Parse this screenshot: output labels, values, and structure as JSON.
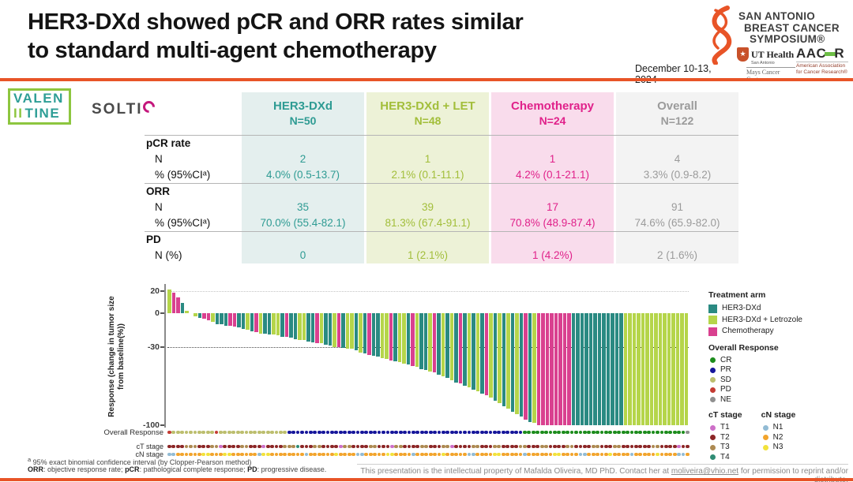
{
  "header": {
    "title_line1": "HER3-DXd showed pCR and ORR rates similar",
    "title_line2": "to standard multi-agent chemotherapy",
    "sabcs_line1": "SAN ANTONIO",
    "sabcs_line2": "BREAST CANCER",
    "sabcs_line3": "SYMPOSIUM®",
    "date": "December 10-13, 2024",
    "ut_health_name": "UT Health",
    "ut_health_city": "San Antonio",
    "ut_health_center": "Mays Cancer Center",
    "aacr_a": "AAC",
    "aacr_r": "R",
    "aacr_sub1": "American Association",
    "aacr_sub2": "for Cancer Research®"
  },
  "logos": {
    "valentine_line1": "VALEN",
    "valentine_bars": "II",
    "valentine_line2": "TINE",
    "solti": "SOLTI"
  },
  "colors": {
    "accent_orange": "#E85427",
    "valentine_teal": "#2E9E96",
    "valentine_green": "#8DC63F",
    "solti_magenta": "#C4177C"
  },
  "table": {
    "columns": [
      {
        "label": "HER3-DXd",
        "n": "N=50",
        "text": "#2E9B93",
        "bg": "#E4EFEE"
      },
      {
        "label": "HER3-DXd + LET",
        "n": "N=48",
        "text": "#A2BE3A",
        "bg": "#EDF2D7"
      },
      {
        "label": "Chemotherapy",
        "n": "N=24",
        "text": "#E0218A",
        "bg": "#F9DCEC"
      },
      {
        "label": "Overall",
        "n": "N=122",
        "text": "#9B9B9B",
        "bg": "#F3F3F3"
      }
    ],
    "rows": [
      {
        "label": "pCR rate",
        "bold": true,
        "values": [
          "",
          "",
          "",
          ""
        ]
      },
      {
        "label": "N",
        "values": [
          "2",
          "1",
          "1",
          "4"
        ]
      },
      {
        "label": "% (95%CIᵃ)",
        "values": [
          "4.0% (0.5-13.7)",
          "2.1% (0.1-11.1)",
          "4.2% (0.1-21.1)",
          "3.3% (0.9-8.2)"
        ],
        "sep": true
      },
      {
        "label": "ORR",
        "bold": true,
        "values": [
          "",
          "",
          "",
          ""
        ]
      },
      {
        "label": "N",
        "values": [
          "35",
          "39",
          "17",
          "91"
        ]
      },
      {
        "label": "% (95%CIᵃ)",
        "values": [
          "70.0% (55.4-82.1)",
          "81.3% (67.4-91.1)",
          "70.8% (48.9-87.4)",
          "74.6% (65.9-82.0)"
        ],
        "sep": true
      },
      {
        "label": "PD",
        "bold": true,
        "values": [
          "",
          "",
          "",
          ""
        ]
      },
      {
        "label": "N (%)",
        "values": [
          "0",
          "1 (2.1%)",
          "1 (4.2%)",
          "2 (1.6%)"
        ]
      }
    ]
  },
  "chart_data": {
    "type": "bar",
    "subtype": "waterfall",
    "ylabel_line1": "Response (change in tumor size",
    "ylabel_line2": "from baseline(%))",
    "ylim": [
      -105,
      25
    ],
    "yticks": [
      {
        "v": 20,
        "label": "20"
      },
      {
        "v": 0,
        "label": "0"
      },
      {
        "v": -30,
        "label": "-30"
      },
      {
        "v": -100,
        "label": "-100"
      }
    ],
    "dotted_lines": [
      20,
      -30
    ],
    "arm_colors": {
      "D": "#2A8A82",
      "L": "#B5D54A",
      "C": "#D9408F"
    },
    "bars": [
      [
        21,
        "L"
      ],
      [
        18,
        "C"
      ],
      [
        14,
        "C"
      ],
      [
        9,
        "D"
      ],
      [
        2,
        "L"
      ],
      [
        0,
        "D"
      ],
      [
        -3,
        "L"
      ],
      [
        -4,
        "D"
      ],
      [
        -5,
        "C"
      ],
      [
        -6,
        "C"
      ],
      [
        -8,
        "L"
      ],
      [
        -10,
        "D"
      ],
      [
        -10,
        "D"
      ],
      [
        -11,
        "D"
      ],
      [
        -11,
        "C"
      ],
      [
        -12,
        "C"
      ],
      [
        -13,
        "D"
      ],
      [
        -14,
        "D"
      ],
      [
        -15,
        "L"
      ],
      [
        -16,
        "D"
      ],
      [
        -17,
        "C"
      ],
      [
        -18,
        "L"
      ],
      [
        -18,
        "D"
      ],
      [
        -19,
        "D"
      ],
      [
        -19,
        "L"
      ],
      [
        -20,
        "L"
      ],
      [
        -21,
        "D"
      ],
      [
        -21,
        "C"
      ],
      [
        -22,
        "D"
      ],
      [
        -23,
        "D"
      ],
      [
        -24,
        "L"
      ],
      [
        -24,
        "L"
      ],
      [
        -25,
        "D"
      ],
      [
        -26,
        "D"
      ],
      [
        -27,
        "C"
      ],
      [
        -27,
        "L"
      ],
      [
        -28,
        "D"
      ],
      [
        -29,
        "D"
      ],
      [
        -30,
        "L"
      ],
      [
        -30,
        "C"
      ],
      [
        -31,
        "D"
      ],
      [
        -32,
        "L"
      ],
      [
        -32,
        "L"
      ],
      [
        -33,
        "D"
      ],
      [
        -35,
        "L"
      ],
      [
        -36,
        "D"
      ],
      [
        -37,
        "C"
      ],
      [
        -38,
        "D"
      ],
      [
        -39,
        "D"
      ],
      [
        -40,
        "L"
      ],
      [
        -41,
        "L"
      ],
      [
        -42,
        "C"
      ],
      [
        -43,
        "D"
      ],
      [
        -44,
        "L"
      ],
      [
        -45,
        "L"
      ],
      [
        -46,
        "D"
      ],
      [
        -47,
        "C"
      ],
      [
        -48,
        "L"
      ],
      [
        -50,
        "D"
      ],
      [
        -51,
        "D"
      ],
      [
        -52,
        "L"
      ],
      [
        -53,
        "C"
      ],
      [
        -55,
        "D"
      ],
      [
        -56,
        "L"
      ],
      [
        -58,
        "D"
      ],
      [
        -60,
        "L"
      ],
      [
        -62,
        "D"
      ],
      [
        -63,
        "C"
      ],
      [
        -65,
        "D"
      ],
      [
        -66,
        "L"
      ],
      [
        -68,
        "D"
      ],
      [
        -70,
        "L"
      ],
      [
        -72,
        "D"
      ],
      [
        -73,
        "C"
      ],
      [
        -75,
        "L"
      ],
      [
        -78,
        "D"
      ],
      [
        -80,
        "L"
      ],
      [
        -83,
        "D"
      ],
      [
        -85,
        "L"
      ],
      [
        -88,
        "D"
      ],
      [
        -90,
        "L"
      ],
      [
        -92,
        "D"
      ],
      [
        -95,
        "C"
      ],
      [
        -97,
        "D"
      ],
      [
        -98,
        "L"
      ],
      [
        -100,
        "C"
      ],
      [
        -100,
        "C"
      ],
      [
        -100,
        "C"
      ],
      [
        -100,
        "C"
      ],
      [
        -100,
        "C"
      ],
      [
        -100,
        "C"
      ],
      [
        -100,
        "C"
      ],
      [
        -100,
        "C"
      ],
      [
        -100,
        "D"
      ],
      [
        -100,
        "D"
      ],
      [
        -100,
        "D"
      ],
      [
        -100,
        "D"
      ],
      [
        -100,
        "D"
      ],
      [
        -100,
        "D"
      ],
      [
        -100,
        "D"
      ],
      [
        -100,
        "D"
      ],
      [
        -100,
        "D"
      ],
      [
        -100,
        "D"
      ],
      [
        -100,
        "D"
      ],
      [
        -100,
        "D"
      ],
      [
        -100,
        "L"
      ],
      [
        -100,
        "L"
      ],
      [
        -100,
        "L"
      ],
      [
        -100,
        "L"
      ],
      [
        -100,
        "L"
      ],
      [
        -100,
        "L"
      ],
      [
        -100,
        "L"
      ],
      [
        -100,
        "L"
      ],
      [
        -100,
        "L"
      ],
      [
        -100,
        "L"
      ],
      [
        -100,
        "L"
      ],
      [
        -100,
        "L"
      ],
      [
        -100,
        "L"
      ],
      [
        -100,
        "L"
      ],
      [
        -100,
        "L"
      ]
    ],
    "palettes": {
      "response": {
        "CR": "#1C8C1C",
        "PR": "#16169B",
        "SD": "#BCBE6E",
        "PD": "#C43B33",
        "NE": "#8F8F8F"
      },
      "ct": {
        "T1": "#CD6FC8",
        "T2": "#8C2626",
        "T3": "#AD8A52",
        "T4": "#2F8C74"
      },
      "cn": {
        "N1": "#92BBD4",
        "N2": "#F2A42C",
        "N3": "#F2E23B"
      }
    },
    "dot_rows": [
      {
        "label": "Overall Response",
        "palette": "response",
        "segments": [
          [
            "PD",
            1
          ],
          [
            "SD",
            10
          ],
          [
            "PD",
            1
          ],
          [
            "SD",
            16
          ],
          [
            "PR",
            55
          ],
          [
            "CR",
            38
          ],
          [
            "NE",
            1
          ]
        ]
      },
      {
        "label": "cT stage",
        "palette": "ct",
        "segments": [
          [
            "T2",
            4
          ],
          [
            "T3",
            3
          ],
          [
            "T2",
            3
          ],
          [
            "T3",
            2
          ],
          [
            "T1",
            1
          ],
          [
            "T2",
            4
          ],
          [
            "T3",
            2
          ],
          [
            "T2",
            3
          ],
          [
            "T1",
            1
          ],
          [
            "T2",
            4
          ],
          [
            "T3",
            3
          ],
          [
            "T4",
            1
          ],
          [
            "T2",
            3
          ],
          [
            "T3",
            2
          ],
          [
            "T2",
            4
          ],
          [
            "T1",
            1
          ],
          [
            "T3",
            2
          ],
          [
            "T2",
            4
          ],
          [
            "T3",
            2
          ],
          [
            "T2",
            3
          ],
          [
            "T1",
            1
          ],
          [
            "T3",
            2
          ],
          [
            "T2",
            4
          ],
          [
            "T3",
            2
          ],
          [
            "T2",
            3
          ],
          [
            "T3",
            2
          ],
          [
            "T1",
            1
          ],
          [
            "T2",
            4
          ],
          [
            "T3",
            2
          ],
          [
            "T2",
            3
          ],
          [
            "T3",
            2
          ],
          [
            "T2",
            4
          ],
          [
            "T3",
            2
          ],
          [
            "T2",
            3
          ],
          [
            "T3",
            2
          ],
          [
            "T2",
            4
          ],
          [
            "T3",
            2
          ],
          [
            "T2",
            4
          ],
          [
            "T3",
            2
          ],
          [
            "T2",
            3
          ],
          [
            "T3",
            2
          ],
          [
            "T2",
            3
          ],
          [
            "T2",
            4
          ],
          [
            "T3",
            2
          ],
          [
            "T2",
            4
          ],
          [
            "T1",
            1
          ],
          [
            "T2",
            2
          ]
        ]
      },
      {
        "label": "cN stage",
        "palette": "cn",
        "segments": [
          [
            "N1",
            2
          ],
          [
            "N2",
            6
          ],
          [
            "N3",
            2
          ],
          [
            "N2",
            3
          ],
          [
            "N3",
            2
          ],
          [
            "N2",
            6
          ],
          [
            "N1",
            1
          ],
          [
            "N3",
            2
          ],
          [
            "N2",
            8
          ],
          [
            "N1",
            1
          ],
          [
            "N2",
            6
          ],
          [
            "N3",
            1
          ],
          [
            "N2",
            4
          ],
          [
            "N1",
            2
          ],
          [
            "N2",
            5
          ],
          [
            "N3",
            2
          ],
          [
            "N2",
            4
          ],
          [
            "N1",
            1
          ],
          [
            "N2",
            6
          ],
          [
            "N3",
            1
          ],
          [
            "N2",
            5
          ],
          [
            "N1",
            2
          ],
          [
            "N2",
            4
          ],
          [
            "N3",
            2
          ],
          [
            "N2",
            5
          ],
          [
            "N1",
            1
          ],
          [
            "N2",
            6
          ],
          [
            "N3",
            2
          ],
          [
            "N2",
            4
          ],
          [
            "N1",
            2
          ],
          [
            "N2",
            5
          ],
          [
            "N3",
            1
          ],
          [
            "N2",
            4
          ],
          [
            "N1",
            1
          ],
          [
            "N2",
            5
          ],
          [
            "N3",
            1
          ],
          [
            "N2",
            4
          ],
          [
            "N1",
            2
          ],
          [
            "N2",
            1
          ]
        ]
      }
    ],
    "legend": {
      "treatment_title": "Treatment arm",
      "arms": [
        {
          "key": "D",
          "label": "HER3-DXd"
        },
        {
          "key": "L",
          "label": "HER3-DXd + Letrozole"
        },
        {
          "key": "C",
          "label": "Chemotherapy"
        }
      ],
      "response_title": "Overall Response",
      "response_keys": [
        "CR",
        "PR",
        "SD",
        "PD",
        "NE"
      ],
      "ct_title": "cT stage",
      "ct_keys": [
        "T1",
        "T2",
        "T3",
        "T4"
      ],
      "cn_title": "cN stage",
      "cn_keys": [
        "N1",
        "N2",
        "N3"
      ]
    }
  },
  "footer": {
    "footnote_sup": "a",
    "footnote_text": " 95% exact binomial confidence interval (by Clopper-Pearson method)",
    "abbrev_segments": [
      {
        "t": "ORR",
        "b": true
      },
      {
        "t": ": objective response rate; ",
        "b": false
      },
      {
        "t": "pCR",
        "b": true
      },
      {
        "t": ": pathological complete response; ",
        "b": false
      },
      {
        "t": "PD",
        "b": true
      },
      {
        "t": ": progressive disease.",
        "b": false
      }
    ],
    "property_pre": "This presentation is the intellectual property of Mafalda Oliveira, MD PhD. Contact her at ",
    "property_link": "moliveira@vhio.net",
    "property_post": " for permission to reprint and/or distribute."
  }
}
